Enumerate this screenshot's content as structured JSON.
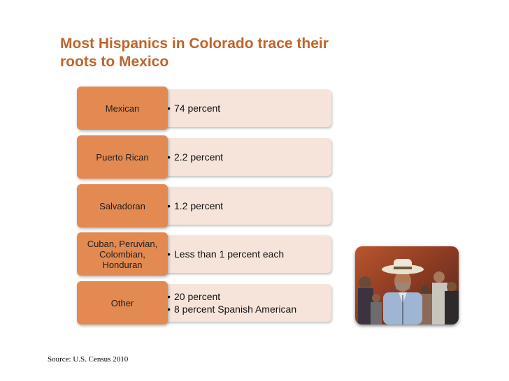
{
  "title": "Most Hispanics in Colorado trace their roots to Mexico",
  "rows": [
    {
      "label": "Mexican",
      "bullets": [
        "74 percent"
      ]
    },
    {
      "label": "Puerto Rican",
      "bullets": [
        "2.2 percent"
      ]
    },
    {
      "label": "Salvadoran",
      "bullets": [
        "1.2 percent"
      ]
    },
    {
      "label": "Cuban, Peruvian, Colombian, Honduran",
      "bullets": [
        "Less than 1 percent each"
      ]
    },
    {
      "label": "Other",
      "bullets": [
        "20 percent",
        "8 percent Spanish American"
      ]
    }
  ],
  "source": "Source: U.S. Census 2010",
  "colors": {
    "title": "#c0642a",
    "label_fill": "#e38a52",
    "desc_fill": "#f6e4da"
  },
  "photo_subject": "man-in-cowboy-hat-photo"
}
